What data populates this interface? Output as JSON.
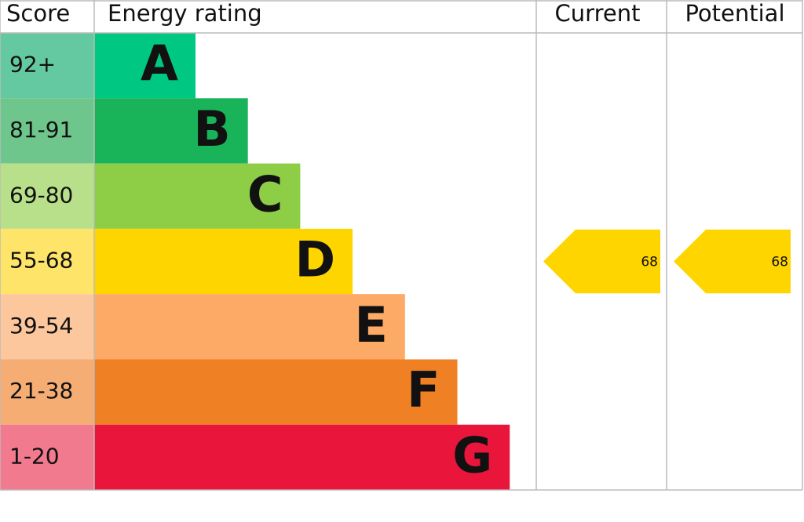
{
  "chart_data": {
    "type": "epc",
    "headers": {
      "score": "Score",
      "rating": "Energy rating",
      "current": "Current",
      "potential": "Potential"
    },
    "categories": [
      "A",
      "B",
      "C",
      "D",
      "E",
      "F",
      "G"
    ],
    "scores": [
      "92+",
      "81-91",
      "69-80",
      "55-68",
      "39-54",
      "21-38",
      "1-20"
    ],
    "colors": [
      "#00c781",
      "#19b459",
      "#8dce46",
      "#ffd500",
      "#fcaa65",
      "#ef8023",
      "#e9153b"
    ],
    "score_colors": [
      "#64c9a1",
      "#6ec68c",
      "#b8e08a",
      "#ffe46a",
      "#fdc79d",
      "#f5ad74",
      "#f17a8e"
    ],
    "current": 68,
    "potential": 68,
    "arrow_color": "#ffd500"
  }
}
